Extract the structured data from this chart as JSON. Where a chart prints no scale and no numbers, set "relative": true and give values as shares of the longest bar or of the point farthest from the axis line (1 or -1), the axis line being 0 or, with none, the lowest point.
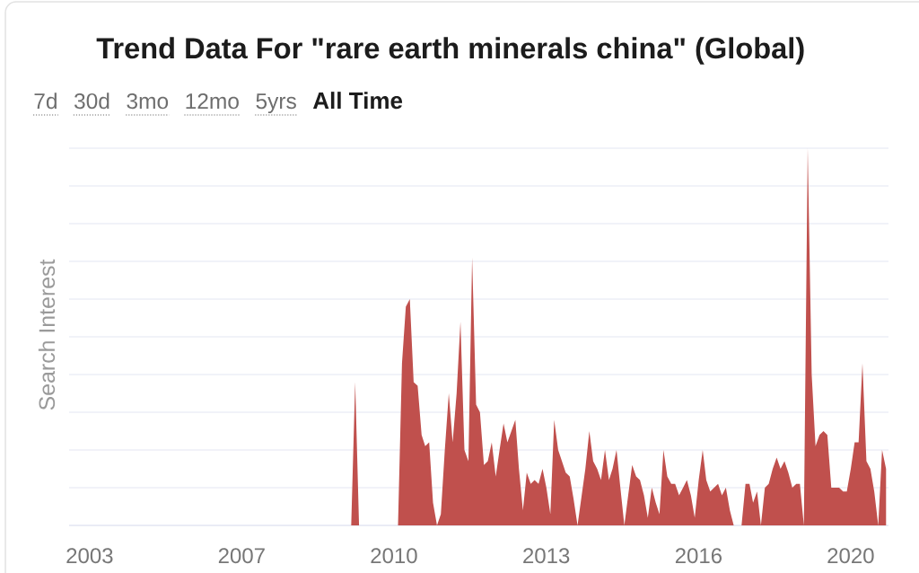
{
  "chart_data": {
    "type": "area",
    "title": "Trend Data For \"rare earth minerals china\" (Global)",
    "ylabel": "Search Interest",
    "annotations": [
      "7d",
      "30d",
      "3mo",
      "12mo",
      "5yrs",
      "All Time"
    ],
    "relative": true,
    "color": "#c0504d",
    "x": [
      "2004-01",
      "2009-08",
      "2009-09",
      "2009-10",
      "2010-08",
      "2010-09",
      "2010-10",
      "2010-11",
      "2010-12",
      "2011-01",
      "2011-02",
      "2011-03",
      "2011-04",
      "2011-05",
      "2011-06",
      "2011-07",
      "2011-08",
      "2011-09",
      "2011-10",
      "2011-11",
      "2011-12",
      "2012-01",
      "2012-02",
      "2012-03",
      "2012-04",
      "2012-05",
      "2012-06",
      "2012-07",
      "2012-08",
      "2012-09",
      "2012-10",
      "2012-11",
      "2012-12",
      "2013-01",
      "2013-02",
      "2013-03",
      "2013-04",
      "2013-05",
      "2013-06",
      "2013-07",
      "2013-08",
      "2013-09",
      "2013-10",
      "2013-11",
      "2013-12",
      "2014-01",
      "2014-03",
      "2014-04",
      "2014-05",
      "2014-06",
      "2014-08",
      "2014-09",
      "2014-10",
      "2014-11",
      "2014-12",
      "2015-01",
      "2015-02",
      "2015-03",
      "2015-04",
      "2015-05",
      "2015-06",
      "2015-07",
      "2015-08",
      "2015-09",
      "2015-10",
      "2015-11",
      "2015-12",
      "2016-01",
      "2016-02",
      "2016-03",
      "2016-04",
      "2016-05",
      "2016-06",
      "2016-07",
      "2016-08",
      "2016-09",
      "2016-10",
      "2016-11",
      "2016-12",
      "2017-01",
      "2017-02",
      "2017-03",
      "2017-04",
      "2017-05",
      "2017-06",
      "2017-07",
      "2017-08",
      "2017-09",
      "2017-10",
      "2017-12",
      "2018-01",
      "2018-02",
      "2018-03",
      "2018-04",
      "2018-05",
      "2018-06",
      "2018-07",
      "2018-08",
      "2018-09",
      "2018-10",
      "2018-11",
      "2018-12",
      "2019-01",
      "2019-02",
      "2019-03",
      "2019-04",
      "2019-05",
      "2019-06",
      "2019-07",
      "2019-08",
      "2019-09",
      "2019-10",
      "2019-11",
      "2019-12",
      "2020-01",
      "2020-02",
      "2020-03",
      "2020-04",
      "2020-05",
      "2020-06",
      "2020-07",
      "2020-08",
      "2020-09",
      "2020-10",
      "2020-11",
      "2020-12",
      "2021-01"
    ],
    "values": [
      0,
      0,
      0.38,
      0,
      0,
      0.43,
      0.58,
      0.6,
      0.38,
      0.37,
      0.24,
      0.21,
      0.22,
      0.06,
      0,
      0.03,
      0.2,
      0.35,
      0.22,
      0.35,
      0.54,
      0.2,
      0.17,
      0.71,
      0.32,
      0.3,
      0.16,
      0.17,
      0.22,
      0.13,
      0.2,
      0.27,
      0.22,
      0.25,
      0.28,
      0.15,
      0.04,
      0.14,
      0.11,
      0.12,
      0.11,
      0.15,
      0.1,
      0.03,
      0.28,
      0.2,
      0.14,
      0.13,
      0.07,
      0,
      0.15,
      0.25,
      0.17,
      0.15,
      0.12,
      0.2,
      0.12,
      0.15,
      0.2,
      0.1,
      0,
      0.08,
      0.16,
      0.13,
      0.12,
      0.08,
      0.02,
      0.1,
      0.06,
      0.03,
      0.2,
      0.13,
      0.11,
      0.11,
      0.08,
      0.1,
      0.12,
      0.08,
      0.02,
      0.12,
      0.2,
      0.12,
      0.09,
      0.1,
      0.11,
      0.08,
      0.1,
      0.04,
      0,
      0,
      0.11,
      0.11,
      0.06,
      0.09,
      0,
      0.1,
      0.11,
      0.15,
      0.18,
      0.15,
      0.17,
      0.14,
      0.1,
      0.11,
      0.11,
      0,
      1,
      0.4,
      0.21,
      0.24,
      0.25,
      0.24,
      0.1,
      0.1,
      0.1,
      0.09,
      0.09,
      0.15,
      0.22,
      0.22,
      0.43,
      0.17,
      0.15,
      0.09,
      0,
      0.2,
      0.15
    ],
    "xlim": [
      "2003-07-24",
      "2021-01-20"
    ],
    "xticks": [
      {
        "value": "2003-12-31",
        "label": "2003"
      },
      {
        "value": "2007-03-31",
        "label": "2007"
      },
      {
        "value": "2010-06-30",
        "label": "2010"
      },
      {
        "value": "2013-09-30",
        "label": "2013"
      },
      {
        "value": "2016-12-31",
        "label": "2016"
      },
      {
        "value": "2020-03-31",
        "label": "2020"
      }
    ],
    "grid": "y",
    "tick_labels": "x"
  }
}
